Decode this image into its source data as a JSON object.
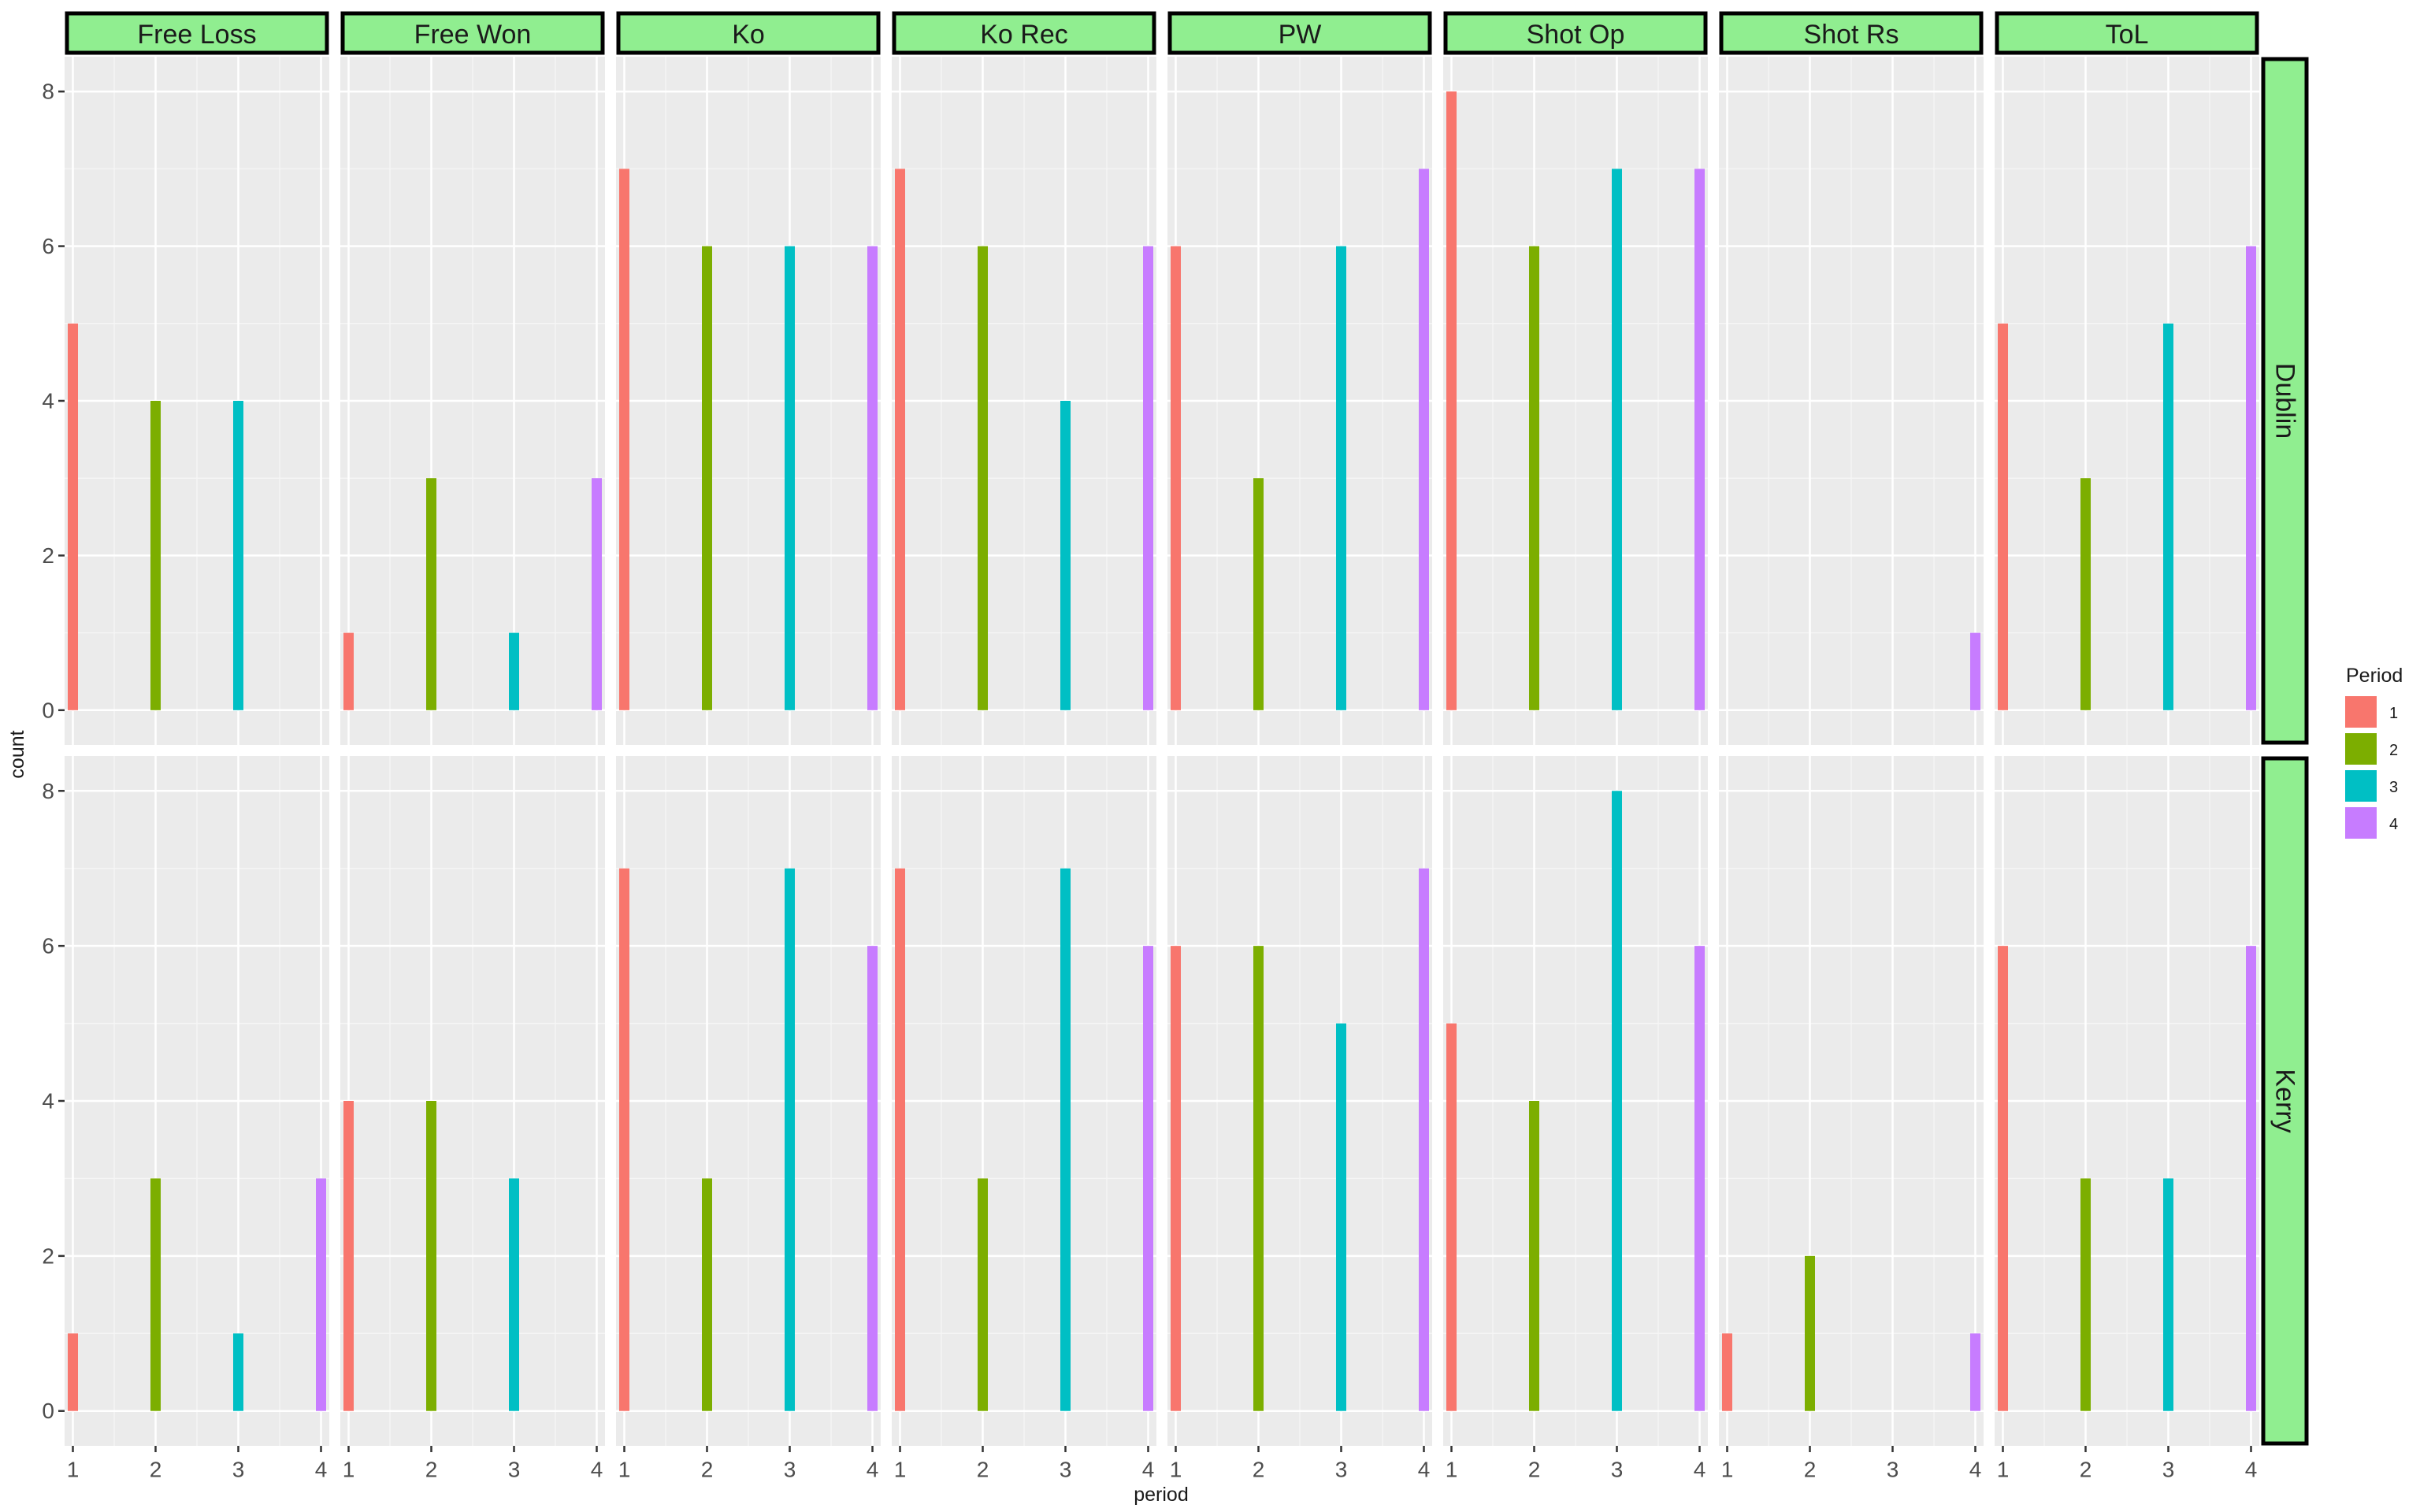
{
  "chart_data": {
    "type": "bar",
    "layout": "facet_grid",
    "xlabel": "period",
    "ylabel": "count",
    "x_ticks": [
      "1",
      "2",
      "3",
      "4"
    ],
    "y_ticks": [
      "0",
      "2",
      "4",
      "6",
      "8"
    ],
    "ylim": [
      -0.45,
      8.45
    ],
    "xlim": [
      0.9,
      4.1
    ],
    "column_facets": [
      "Free Loss",
      "Free Won",
      "Ko",
      "Ko Rec",
      "PW",
      "Shot Op",
      "Shot Rs",
      "ToL"
    ],
    "row_facets": [
      "Dublin",
      "Kerry"
    ],
    "legend": {
      "title": "Period",
      "position": "right",
      "entries": [
        {
          "label": "1",
          "color": "#F8766D"
        },
        {
          "label": "2",
          "color": "#7CAE00"
        },
        {
          "label": "3",
          "color": "#00BFC4"
        },
        {
          "label": "4",
          "color": "#C77CFF"
        }
      ]
    },
    "series_values": {
      "Dublin": {
        "Free Loss": [
          5,
          4,
          4,
          0
        ],
        "Free Won": [
          1,
          3,
          1,
          3
        ],
        "Ko": [
          7,
          6,
          6,
          6
        ],
        "Ko Rec": [
          7,
          6,
          4,
          6
        ],
        "PW": [
          6,
          3,
          6,
          7
        ],
        "Shot Op": [
          8,
          6,
          7,
          7
        ],
        "Shot Rs": [
          0,
          0,
          0,
          1
        ],
        "ToL": [
          5,
          3,
          5,
          6
        ]
      },
      "Kerry": {
        "Free Loss": [
          1,
          3,
          1,
          3
        ],
        "Free Won": [
          4,
          4,
          3,
          0
        ],
        "Ko": [
          7,
          3,
          7,
          6
        ],
        "Ko Rec": [
          7,
          3,
          7,
          6
        ],
        "PW": [
          6,
          6,
          5,
          7
        ],
        "Shot Op": [
          5,
          4,
          8,
          6
        ],
        "Shot Rs": [
          1,
          2,
          0,
          1
        ],
        "ToL": [
          6,
          3,
          3,
          6
        ]
      }
    }
  },
  "colors": {
    "panel_bg": "#EBEBEB",
    "grid_major": "#FFFFFF",
    "grid_minor": "#F5F5F5",
    "strip_bg": "#90EE90",
    "strip_border": "#000000"
  }
}
